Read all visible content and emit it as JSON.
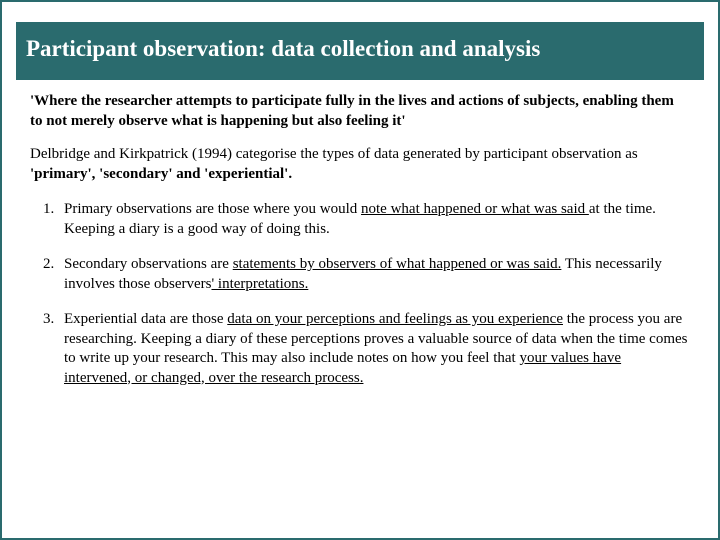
{
  "colors": {
    "teal": "#2a6b6e",
    "white": "#ffffff",
    "text": "#000000"
  },
  "typography": {
    "title_fontsize": 23,
    "body_fontsize": 15,
    "font_family": "Georgia, Times New Roman, serif"
  },
  "title": "Participant observation: data collection and analysis",
  "quote": "'Where the researcher attempts to participate fully in the lives and actions of subjects, enabling them to not merely observe what is happening but also feeling it'",
  "intro_pre": "Delbridge and Kirkpatrick (1994) categorise the types of data generated by participant observation as ",
  "intro_terms": "'primary', 'secondary' and 'experiential'.",
  "items": [
    {
      "pre": "Primary observations are those where you would ",
      "u1": "note what happened or what was said ",
      "post": "at the time. Keeping a diary is a good way of doing this."
    },
    {
      "pre": "Secondary observations are ",
      "u1": "statements by observers of what happened or was said.",
      "mid": " This necessarily involves those observers",
      "u2": "' interpretations."
    },
    {
      "pre": "Experiential data are those ",
      "u1": "data on your perceptions and feelings as you experience",
      "mid": " the process you are researching. Keeping a diary of these perceptions proves a valuable source of data when the time comes to write up your research. This may also include notes on how you feel that ",
      "u2": "your values have intervened, or changed, over the research process."
    }
  ]
}
